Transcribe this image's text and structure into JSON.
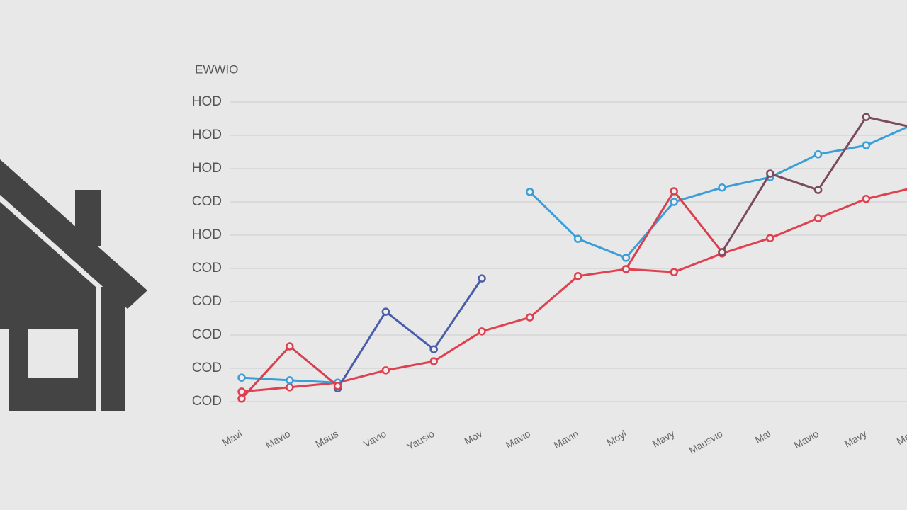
{
  "chart_data": {
    "type": "line",
    "title": "EWWIO",
    "categories": [
      "Mavi",
      "Mavio",
      "Maus",
      "Vavio",
      "Yausio",
      "Mov",
      "Mavio",
      "Mavin",
      "Moyl",
      "Mavy",
      "Mausvio",
      "Mal",
      "Mavio",
      "Mavy",
      "Mev"
    ],
    "series": [
      {
        "color": "#e0404f",
        "values": [
          0.3,
          0.43,
          0.57,
          0.94,
          1.21,
          2.11,
          2.53,
          3.77,
          3.98,
          3.89,
          4.45,
          4.91,
          5.51,
          6.09,
          6.43
        ]
      },
      {
        "color": "#3a9fd8",
        "values": [
          0.72,
          0.64,
          0.57,
          null,
          null,
          null,
          6.3,
          4.89,
          4.32,
          6.0,
          6.43,
          6.74,
          7.43,
          7.7,
          8.34
        ]
      },
      {
        "color": "#4a5ea8",
        "values": [
          null,
          null,
          0.4,
          2.7,
          1.57,
          3.7,
          null,
          null,
          null,
          null,
          null,
          null,
          null,
          null,
          null
        ]
      },
      {
        "color": "#d8404f",
        "values": [
          0.09,
          1.66,
          0.47,
          null,
          null,
          null,
          null,
          null,
          3.98,
          6.32,
          4.49,
          null,
          null,
          null,
          null
        ]
      },
      {
        "color": "#7a4a5e",
        "values": [
          null,
          null,
          null,
          null,
          null,
          null,
          null,
          null,
          null,
          null,
          4.49,
          6.85,
          6.36,
          8.55,
          8.23
        ]
      }
    ],
    "ylim": [
      -0.5,
      9.5
    ],
    "yticks": [
      {
        "value": 0,
        "label": "COD"
      },
      {
        "value": 1,
        "label": "COD"
      },
      {
        "value": 2,
        "label": "COD"
      },
      {
        "value": 3,
        "label": "COD"
      },
      {
        "value": 4,
        "label": "COD"
      },
      {
        "value": 5,
        "label": "HOD"
      },
      {
        "value": 6,
        "label": "COD"
      },
      {
        "value": 7,
        "label": "HOD"
      },
      {
        "value": 8,
        "label": "HOD"
      },
      {
        "value": 9,
        "label": "HOD"
      }
    ],
    "grid": true
  }
}
